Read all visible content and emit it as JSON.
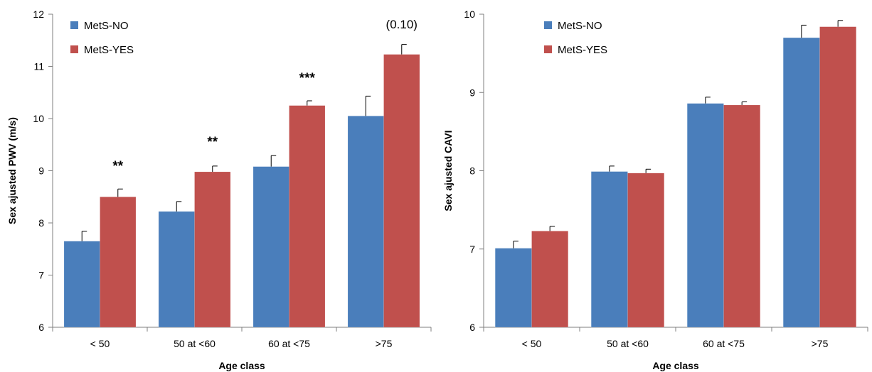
{
  "colors": {
    "metsNo": "#4a7ebb",
    "metsYes": "#c0504d"
  },
  "chart_data": [
    {
      "type": "bar",
      "title": "",
      "xlabel": "Age class",
      "ylabel": "Sex ajusted PWV (m/s)",
      "categories": [
        "< 50",
        "50 at <60",
        "60 at <75",
        ">75"
      ],
      "ylim": [
        6,
        12
      ],
      "yticks": [
        6,
        7,
        8,
        9,
        10,
        11,
        12
      ],
      "legend_position": "top-left",
      "grid": false,
      "series": [
        {
          "name": "MetS-NO",
          "values": [
            7.65,
            8.22,
            9.08,
            10.05
          ],
          "errors": [
            0.19,
            0.19,
            0.21,
            0.38
          ]
        },
        {
          "name": "MetS-YES",
          "values": [
            8.5,
            8.98,
            10.25,
            11.23
          ],
          "errors": [
            0.15,
            0.11,
            0.09,
            0.19
          ]
        }
      ],
      "annotations": [
        "**",
        "**",
        "***",
        "(0.10)"
      ]
    },
    {
      "type": "bar",
      "title": "",
      "xlabel": "Age class",
      "ylabel": "Sex ajusted CAVI",
      "categories": [
        "< 50",
        "50 at <60",
        "60 at <75",
        ">75"
      ],
      "ylim": [
        6,
        10
      ],
      "yticks": [
        6,
        7,
        8,
        9,
        10
      ],
      "legend_position": "top-left",
      "grid": false,
      "series": [
        {
          "name": "MetS-NO",
          "values": [
            7.01,
            7.99,
            8.86,
            9.7
          ],
          "errors": [
            0.09,
            0.07,
            0.08,
            0.16
          ]
        },
        {
          "name": "MetS-YES",
          "values": [
            7.23,
            7.97,
            8.84,
            9.84
          ],
          "errors": [
            0.06,
            0.05,
            0.04,
            0.08
          ]
        }
      ],
      "annotations": [
        "",
        "",
        "",
        ""
      ]
    }
  ]
}
